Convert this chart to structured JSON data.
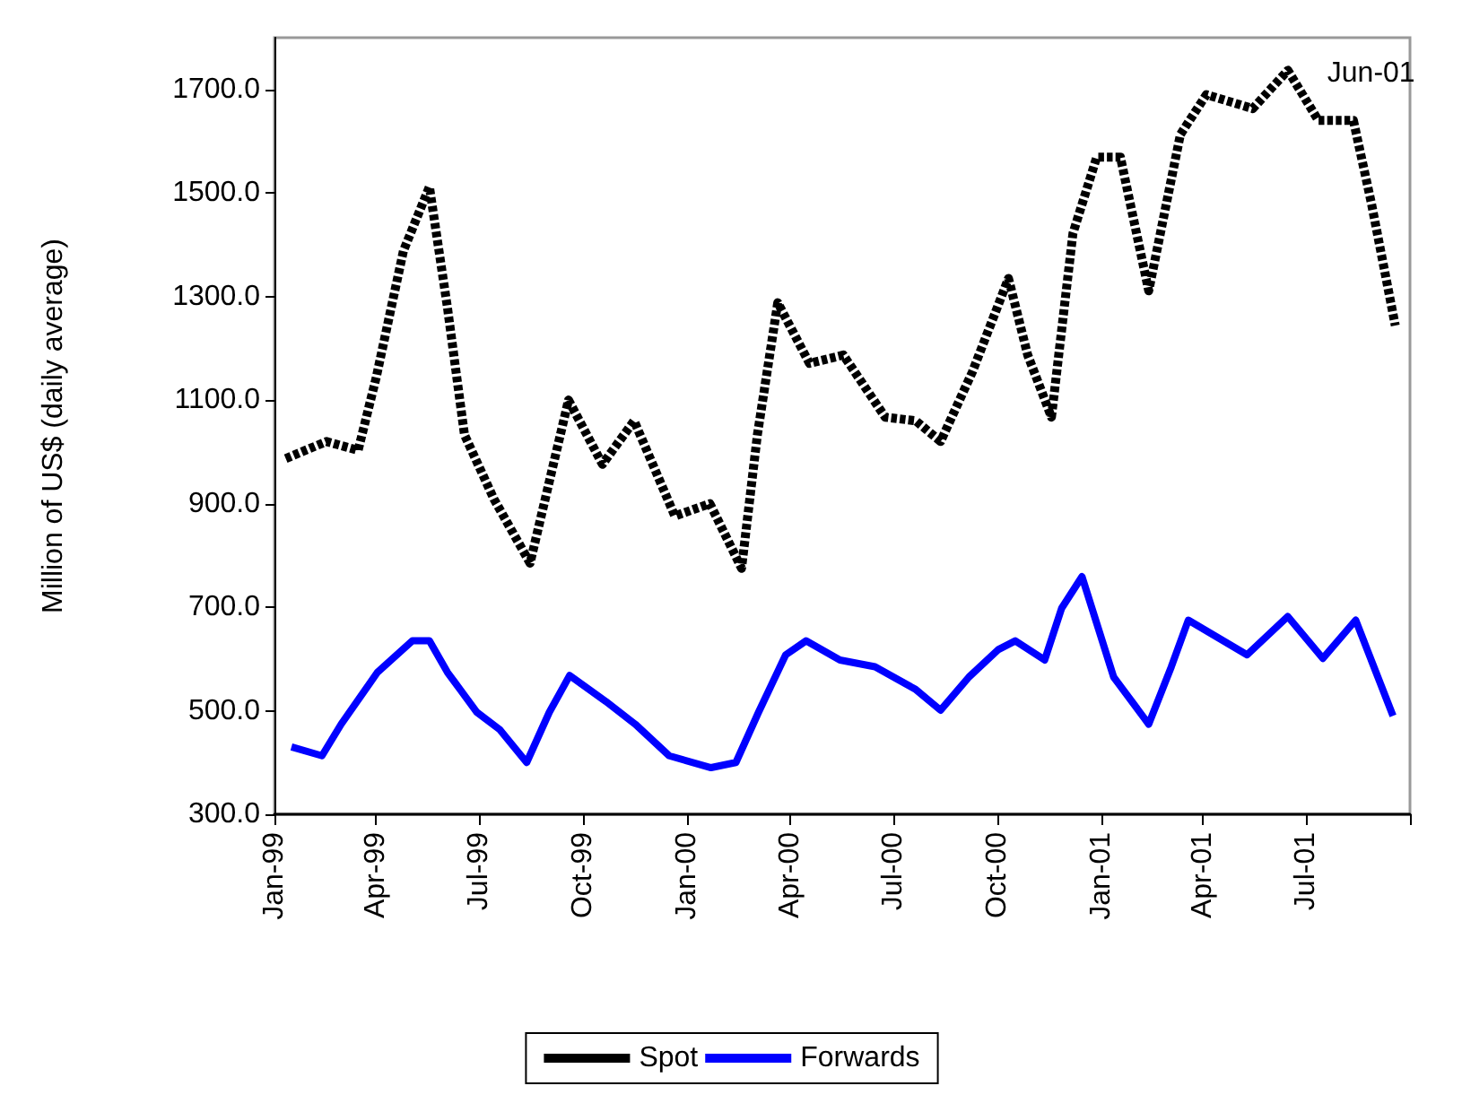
{
  "chart_data": {
    "type": "line",
    "ylabel": "Million of US$ (daily average)",
    "xlim": [
      "1999-01-01",
      "2001-10-01"
    ],
    "xticks": [
      {
        "value": "1999-01-01",
        "label": "Jan-99"
      },
      {
        "value": "1999-04-01",
        "label": "Apr-99"
      },
      {
        "value": "1999-07-01",
        "label": "Jul-99"
      },
      {
        "value": "1999-10-01",
        "label": "Oct-99"
      },
      {
        "value": "2000-01-01",
        "label": "Jan-00"
      },
      {
        "value": "2000-04-01",
        "label": "Apr-00"
      },
      {
        "value": "2000-07-01",
        "label": "Jul-00"
      },
      {
        "value": "2000-10-01",
        "label": "Oct-00"
      },
      {
        "value": "2001-01-01",
        "label": "Jan-01"
      },
      {
        "value": "2001-04-01",
        "label": "Apr-01"
      },
      {
        "value": "2001-07-01",
        "label": "Jul-01"
      },
      {
        "value": "2001-10-01",
        "label": null
      }
    ],
    "ylim": [
      300,
      1800
    ],
    "yticks": [
      {
        "value": 300,
        "label": "300.0"
      },
      {
        "value": 500,
        "label": "500.0"
      },
      {
        "value": 700,
        "label": "700.0"
      },
      {
        "value": 900,
        "label": "900.0"
      },
      {
        "value": 1100,
        "label": "1100.0"
      },
      {
        "value": 1300,
        "label": "1300.0"
      },
      {
        "value": 1500,
        "label": "1500.0"
      },
      {
        "value": 1700,
        "label": "1700.0"
      }
    ],
    "grid": false,
    "legend": "bottom",
    "marker": "none",
    "annotations": [
      {
        "text": "Jun-01",
        "x": "2001-06-15",
        "y": 1737
      }
    ],
    "series": [
      {
        "name": "Spot",
        "color": "#000000",
        "line_style": "dashed",
        "x": [
          "1999-01-11",
          "1999-02-16",
          "1999-03-16",
          "1999-04-01",
          "1999-04-25",
          "1999-05-18",
          "1999-06-03",
          "1999-06-18",
          "1999-07-14",
          "1999-08-15",
          "1999-09-18",
          "1999-10-18",
          "1999-11-15",
          "1999-12-21",
          "2000-01-21",
          "2000-02-18",
          "2000-03-03",
          "2000-03-21",
          "2000-04-18",
          "2000-05-18",
          "2000-06-24",
          "2000-07-21",
          "2000-08-12",
          "2000-09-09",
          "2000-10-11",
          "2000-10-28",
          "2000-11-18",
          "2000-12-07",
          "2000-12-28",
          "2001-01-18",
          "2001-02-12",
          "2001-03-12",
          "2001-04-04",
          "2001-05-15",
          "2001-06-15",
          "2001-07-12",
          "2001-08-12",
          "2001-08-28",
          "2001-09-18"
        ],
        "values": [
          987,
          1020,
          1003,
          1144,
          1388,
          1512,
          1278,
          1033,
          909,
          785,
          1100,
          976,
          1060,
          876,
          900,
          775,
          1033,
          1288,
          1171,
          1187,
          1067,
          1060,
          1020,
          1154,
          1335,
          1187,
          1067,
          1422,
          1569,
          1569,
          1311,
          1613,
          1690,
          1663,
          1737,
          1640,
          1640,
          1479,
          1244
        ]
      },
      {
        "name": "Forwards",
        "color": "#0000ff",
        "line_style": "solid",
        "x": [
          "1999-01-16",
          "1999-02-12",
          "1999-03-01",
          "1999-04-02",
          "1999-05-03",
          "1999-05-18",
          "1999-06-03",
          "1999-06-29",
          "1999-07-19",
          "1999-08-12",
          "1999-09-01",
          "1999-09-19",
          "1999-10-21",
          "1999-11-16",
          "1999-12-16",
          "2000-01-22",
          "2000-02-13",
          "2000-03-04",
          "2000-03-28",
          "2000-04-15",
          "2000-05-15",
          "2000-06-15",
          "2000-07-21",
          "2000-08-12",
          "2000-09-06",
          "2000-10-02",
          "2000-10-17",
          "2000-11-12",
          "2000-11-27",
          "2000-12-15",
          "2001-01-12",
          "2001-02-12",
          "2001-03-04",
          "2001-03-19",
          "2001-05-10",
          "2001-06-15",
          "2001-07-16",
          "2001-08-14",
          "2001-09-16"
        ],
        "values": [
          430,
          413,
          474,
          574,
          635,
          635,
          574,
          497,
          464,
          400,
          497,
          568,
          518,
          474,
          413,
          390,
          400,
          497,
          608,
          635,
          598,
          585,
          541,
          501,
          565,
          618,
          635,
          598,
          698,
          759,
          565,
          474,
          585,
          675,
          608,
          682,
          601,
          675,
          490
        ]
      }
    ]
  }
}
